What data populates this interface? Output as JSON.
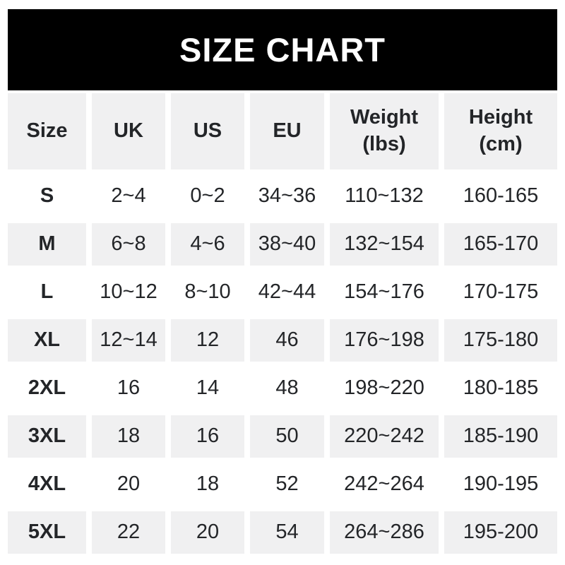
{
  "banner": {
    "title": "SIZE CHART"
  },
  "colors": {
    "banner_bg": "#000000",
    "banner_text": "#ffffff",
    "row_alt_bg": "#f0f0f1",
    "row_bg": "#ffffff",
    "text": "#232528"
  },
  "chart_data": {
    "type": "table",
    "title": "SIZE CHART",
    "columns": [
      "Size",
      "UK",
      "US",
      "EU",
      "Weight (lbs)",
      "Height (cm)"
    ],
    "rows": [
      [
        "S",
        "2~4",
        "0~2",
        "34~36",
        "110~132",
        "160-165"
      ],
      [
        "M",
        "6~8",
        "4~6",
        "38~40",
        "132~154",
        "165-170"
      ],
      [
        "L",
        "10~12",
        "8~10",
        "42~44",
        "154~176",
        "170-175"
      ],
      [
        "XL",
        "12~14",
        "12",
        "46",
        "176~198",
        "175-180"
      ],
      [
        "2XL",
        "16",
        "14",
        "48",
        "198~220",
        "180-185"
      ],
      [
        "3XL",
        "18",
        "16",
        "50",
        "220~242",
        "185-190"
      ],
      [
        "4XL",
        "20",
        "18",
        "52",
        "242~264",
        "190-195"
      ],
      [
        "5XL",
        "22",
        "20",
        "54",
        "264~286",
        "195-200"
      ]
    ],
    "layout": {
      "header_bg": "#f0f0f1",
      "alternating_rows": "gray-white starting with gray header",
      "range_separator_weight": "~",
      "range_separator_height": "-"
    }
  }
}
